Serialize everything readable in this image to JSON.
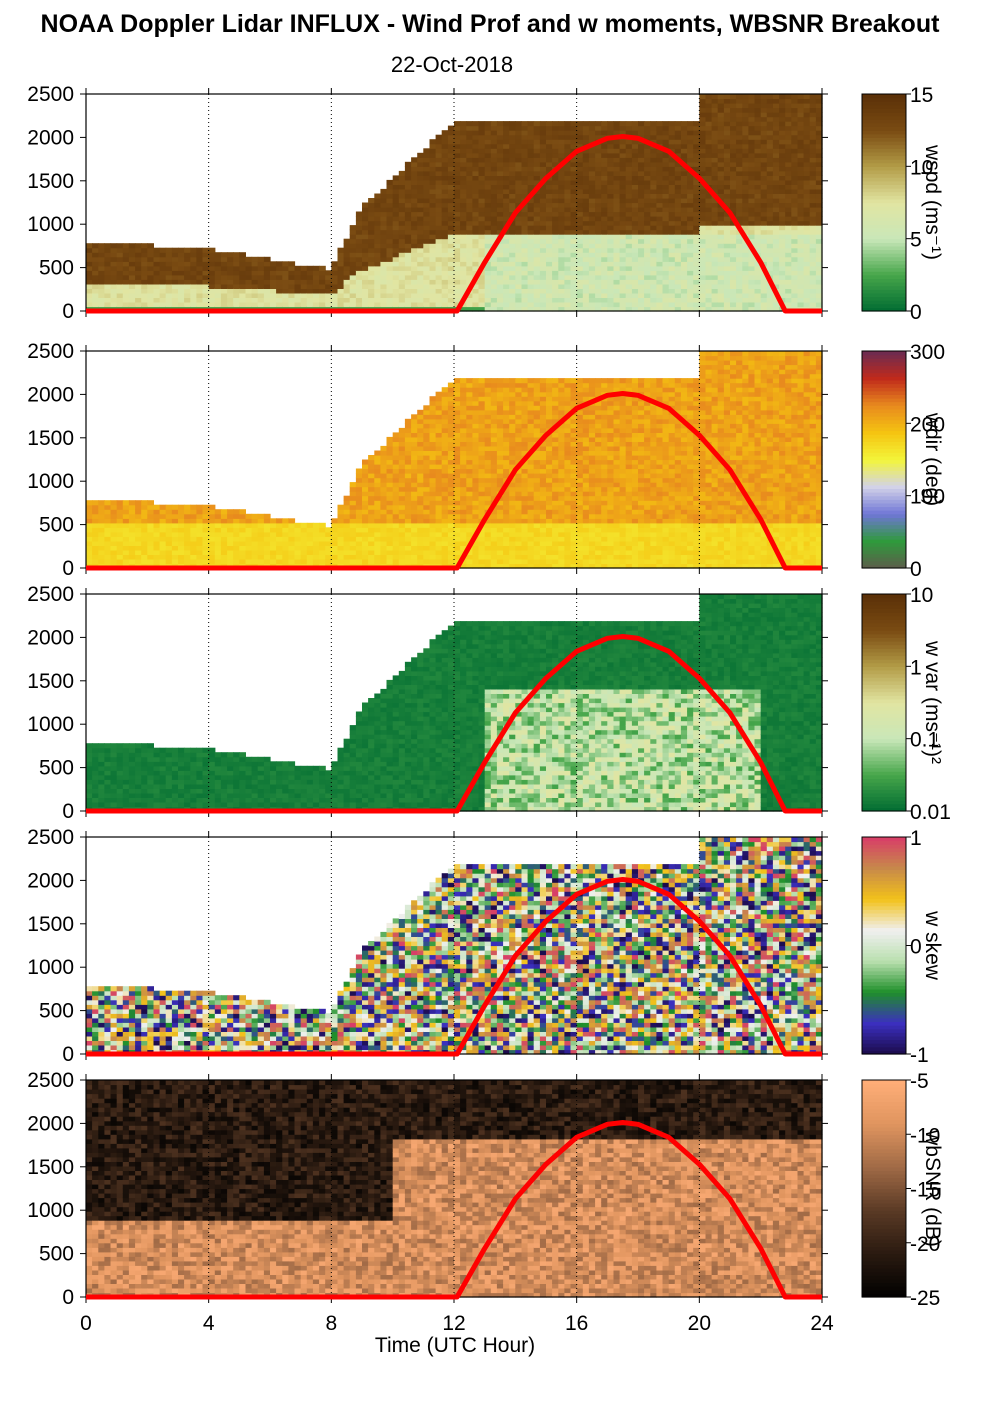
{
  "title": "NOAA Doppler Lidar INFLUX - Wind Prof and w moments, WBSNR Breakout",
  "subtitle": "22-Oct-2018",
  "chart_data": [
    {
      "type": "heatmap",
      "colorbar_label": "wspd (ms⁻¹)",
      "colorbar_ticks": [
        "15",
        "10",
        "5",
        "0"
      ],
      "colormap": [
        "#006b32",
        "#46a64a",
        "#c9e7b8",
        "#e1e5a2",
        "#b39c47",
        "#7a4b12",
        "#5a3008"
      ],
      "ylim": [
        0,
        2500
      ],
      "xlim": [
        0,
        24
      ],
      "y_ticks": [
        "0",
        "500",
        "1000",
        "1500",
        "2000",
        "2500"
      ],
      "overlay_series": {
        "name": "solar elevation curve",
        "color": "#ff0000",
        "x": [
          12.1,
          13,
          14,
          15,
          16,
          17,
          17.5,
          18,
          19,
          20,
          21,
          22,
          22.8
        ],
        "y": [
          0,
          560,
          1130,
          1530,
          1840,
          1990,
          2010,
          1990,
          1840,
          1530,
          1130,
          560,
          0
        ]
      }
    },
    {
      "type": "heatmap",
      "colorbar_label": "wdir (deg)",
      "colorbar_ticks": [
        "300",
        "200",
        "100",
        "0"
      ],
      "colormap": [
        "#5d5d4b",
        "#2f9a3c",
        "#6f76d6",
        "#d2d2e8",
        "#f3f53a",
        "#f5c411",
        "#e88a1e",
        "#c02a1b",
        "#6a2b52"
      ],
      "ylim": [
        0,
        2500
      ],
      "xlim": [
        0,
        24
      ],
      "y_ticks": [
        "0",
        "500",
        "1000",
        "1500",
        "2000",
        "2500"
      ]
    },
    {
      "type": "heatmap",
      "colorbar_label": "w var (ms⁻¹)²",
      "colorbar_ticks": [
        "10",
        "1",
        "0.1",
        "0.01"
      ],
      "colormap": [
        "#006b32",
        "#46a64a",
        "#c9e7b8",
        "#e1e5a2",
        "#b39c47",
        "#7a4b12",
        "#5a3008"
      ],
      "ylim": [
        0,
        2500
      ],
      "xlim": [
        0,
        24
      ],
      "y_ticks": [
        "0",
        "500",
        "1000",
        "1500",
        "2000",
        "2500"
      ]
    },
    {
      "type": "heatmap",
      "colorbar_label": "w skew",
      "colorbar_ticks": [
        "1",
        "0",
        "-1"
      ],
      "colormap": [
        "#1b0b4a",
        "#3b2fbf",
        "#1f8f2a",
        "#b9dfae",
        "#f0f0f0",
        "#f2c21a",
        "#c7894a",
        "#d83d68"
      ],
      "ylim": [
        0,
        2500
      ],
      "xlim": [
        0,
        24
      ],
      "y_ticks": [
        "0",
        "500",
        "1000",
        "1500",
        "2000",
        "2500"
      ]
    },
    {
      "type": "heatmap",
      "colorbar_label": "wbSNR (dB)",
      "colorbar_ticks": [
        "-5",
        "-10",
        "-15",
        "-20",
        "-25"
      ],
      "colormap": [
        "#000000",
        "#2a1a10",
        "#5a3a25",
        "#a06a46",
        "#e0955f",
        "#ffae78"
      ],
      "ylim": [
        0,
        2500
      ],
      "xlim": [
        0,
        24
      ],
      "y_ticks": [
        "0",
        "500",
        "1000",
        "1500",
        "2000",
        "2500"
      ]
    }
  ],
  "x_axis": {
    "label": "Time (UTC Hour)",
    "ticks": [
      "0",
      "4",
      "8",
      "12",
      "16",
      "20",
      "24"
    ],
    "range": [
      0,
      24
    ]
  },
  "colors": {
    "curve": "#ff0000",
    "background": "#ffffff"
  }
}
